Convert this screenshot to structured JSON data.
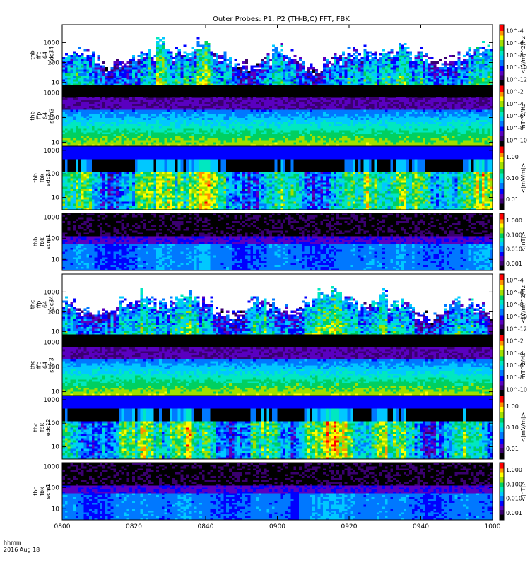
{
  "chart_data": {
    "type": "heatmap",
    "title": "Outer Probes: P1, P2 (TH-B,C) FFT, FBK",
    "time_axis": {
      "range": [
        "0800",
        "1000"
      ],
      "ticks": [
        "0800",
        "0820",
        "0840",
        "0900",
        "0920",
        "0940",
        "1000"
      ]
    },
    "footer": {
      "label": "hhmm",
      "date": "2016 Aug 18"
    },
    "panels": [
      {
        "ylabel": [
          "thb",
          "ffp",
          "64",
          "edc34"
        ],
        "yticks": [
          "10",
          "100",
          "1000"
        ],
        "ylim": [
          7,
          8000
        ],
        "yscale": "log",
        "zlabel": "<(V/m)^2/Hz",
        "zticks": [
          "10^-4",
          "10^-6",
          "10^-8",
          "10^-10",
          "10^-12"
        ],
        "zlim": [
          "1e-13",
          "1e-3"
        ],
        "kind": "edc",
        "sat": "b"
      },
      {
        "ylabel": [
          "thb",
          "ffp",
          "64",
          "scm3"
        ],
        "yticks": [
          "10",
          "100",
          "1000"
        ],
        "ylim": [
          7,
          2000
        ],
        "yscale": "log",
        "zlabel": "nT^2/Hz",
        "zticks": [
          "10^-2",
          "10^-4",
          "10^-6",
          "10^-8",
          "10^-10"
        ],
        "zlim": [
          "1e-11",
          "1e-1"
        ],
        "kind": "scm_ffp",
        "sat": "b"
      },
      {
        "ylabel": [
          "thb",
          "fbk",
          "edc34"
        ],
        "yticks": [
          "10",
          "100",
          "1000"
        ],
        "ylim": [
          3,
          1500
        ],
        "yscale": "log",
        "zlabel": "<|mV/m|>",
        "zticks": [
          "1.00",
          "0.10",
          "0.01"
        ],
        "zlim": [
          "0.005",
          "2"
        ],
        "kind": "fbk_e",
        "sat": "b"
      },
      {
        "ylabel": [
          "thb",
          "fbk",
          "scm1"
        ],
        "yticks": [
          "10",
          "100",
          "1000"
        ],
        "ylim": [
          3,
          1500
        ],
        "yscale": "log",
        "zlabel": "<|nT|>",
        "zticks": [
          "1.000",
          "0.100",
          "0.010",
          "0.001"
        ],
        "zlim": [
          "0.0005",
          "2"
        ],
        "kind": "fbk_b",
        "sat": "b"
      },
      {
        "ylabel": [
          "thc",
          "ffp",
          "64",
          "edc34"
        ],
        "yticks": [
          "10",
          "100",
          "1000"
        ],
        "ylim": [
          7,
          8000
        ],
        "yscale": "log",
        "zlabel": "<(V/m)^2/Hz",
        "zticks": [
          "10^-4",
          "10^-6",
          "10^-8",
          "10^-10",
          "10^-12"
        ],
        "zlim": [
          "1e-13",
          "1e-3"
        ],
        "kind": "edc",
        "sat": "c"
      },
      {
        "ylabel": [
          "thc",
          "ffp",
          "64",
          "scm3"
        ],
        "yticks": [
          "10",
          "100",
          "1000"
        ],
        "ylim": [
          7,
          2000
        ],
        "yscale": "log",
        "zlabel": "nT^2/Hz",
        "zticks": [
          "10^-2",
          "10^-4",
          "10^-6",
          "10^-8",
          "10^-10"
        ],
        "zlim": [
          "1e-11",
          "1e-1"
        ],
        "kind": "scm_ffp",
        "sat": "c"
      },
      {
        "ylabel": [
          "thc",
          "fbk",
          "edc12"
        ],
        "yticks": [
          "10",
          "100",
          "1000"
        ],
        "ylim": [
          3,
          1500
        ],
        "yscale": "log",
        "zlabel": "<|mV/m|>",
        "zticks": [
          "1.00",
          "0.10",
          "0.01"
        ],
        "zlim": [
          "0.005",
          "2"
        ],
        "kind": "fbk_e",
        "sat": "c"
      },
      {
        "ylabel": [
          "thc",
          "fbk",
          "scm1"
        ],
        "yticks": [
          "10",
          "100",
          "1000"
        ],
        "ylim": [
          3,
          1500
        ],
        "yscale": "log",
        "zlabel": "<|nT|>",
        "zticks": [
          "1.000",
          "0.100",
          "0.010",
          "0.001"
        ],
        "zlim": [
          "0.0005",
          "2"
        ],
        "kind": "fbk_b",
        "sat": "c"
      }
    ],
    "colormap": [
      "#000000",
      "#3a0070",
      "#5a00c0",
      "#0000ff",
      "#0078ff",
      "#00c8ff",
      "#00e8c0",
      "#00d060",
      "#a0e000",
      "#ffff00",
      "#ff9000",
      "#ff0000"
    ],
    "grid": false,
    "legend": "colorbar-right"
  }
}
